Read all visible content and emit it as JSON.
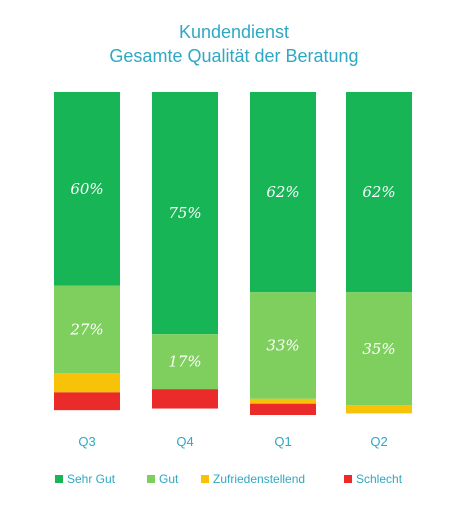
{
  "chart_data": {
    "type": "bar",
    "stacked": true,
    "title": "Kundendienst",
    "subtitle": "Gesamte Qualität der Beratung",
    "categories": [
      "Q3",
      "Q4",
      "Q1",
      "Q2"
    ],
    "ylim": [
      0,
      100
    ],
    "series": [
      {
        "name": "Sehr Gut",
        "color": "#17b556",
        "values": [
          60,
          75,
          62,
          62
        ]
      },
      {
        "name": "Gut",
        "color": "#7ecf5e",
        "values": [
          27,
          17,
          33,
          35
        ]
      },
      {
        "name": "Zufriedenstellend",
        "color": "#f8c208",
        "values": [
          6,
          0,
          1.5,
          2.5
        ]
      },
      {
        "name": "Schlecht",
        "color": "#eb2a2a",
        "values": [
          5.5,
          6,
          3.5,
          0
        ]
      }
    ],
    "data_labels": [
      {
        "category": "Q3",
        "series": "Sehr Gut",
        "text": "60%"
      },
      {
        "category": "Q4",
        "series": "Sehr Gut",
        "text": "75%"
      },
      {
        "category": "Q1",
        "series": "Sehr Gut",
        "text": "62%"
      },
      {
        "category": "Q2",
        "series": "Sehr Gut",
        "text": "62%"
      },
      {
        "category": "Q3",
        "series": "Gut",
        "text": "27%"
      },
      {
        "category": "Q4",
        "series": "Gut",
        "text": "17%"
      },
      {
        "category": "Q1",
        "series": "Gut",
        "text": "33%"
      },
      {
        "category": "Q2",
        "series": "Gut",
        "text": "35%"
      }
    ],
    "legend": "bottom",
    "grid": false
  }
}
